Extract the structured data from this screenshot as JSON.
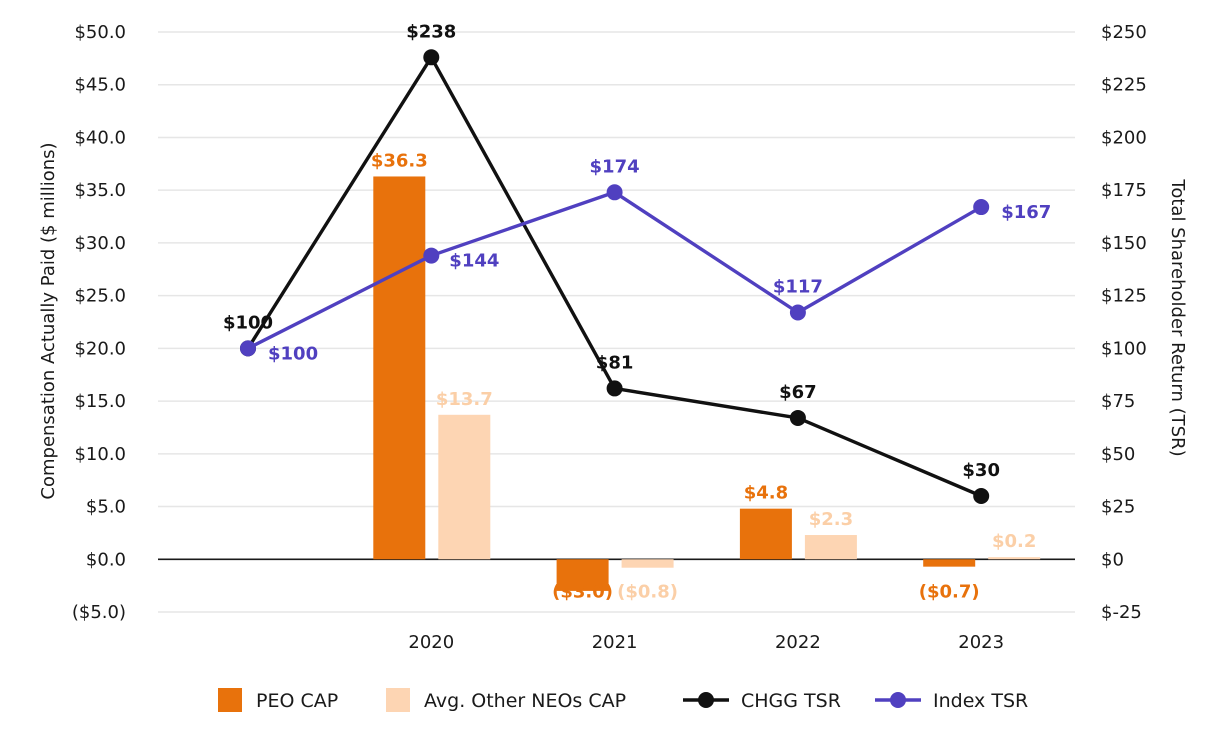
{
  "chart_data": {
    "type": "bar",
    "categories": [
      "",
      "2020",
      "2021",
      "2022",
      "2023"
    ],
    "y_left": {
      "label": "Compensation Actually Paid ($ millions)",
      "range": [
        -5,
        50
      ],
      "ticks": [
        50,
        45,
        40,
        35,
        30,
        25,
        20,
        15,
        10,
        5,
        0,
        -5
      ],
      "tick_labels": [
        "$50.0",
        "$45.0",
        "$40.0",
        "$35.0",
        "$30.0",
        "$25.0",
        "$20.0",
        "$15.0",
        "$10.0",
        "$5.0",
        "$0.0",
        "($5.0)"
      ]
    },
    "y_right": {
      "label": "Total Shareholder Return (TSR)",
      "range": [
        -25,
        250
      ],
      "ticks": [
        250,
        225,
        200,
        175,
        150,
        125,
        100,
        75,
        50,
        25,
        0,
        -25
      ],
      "tick_labels": [
        "$250",
        "$225",
        "$200",
        "$175",
        "$150",
        "$125",
        "$100",
        "$75",
        "$50",
        "$25",
        "$0",
        "$-25"
      ]
    },
    "series": [
      {
        "name": "PEO CAP",
        "kind": "bar",
        "axis": "left",
        "color": "#E8720C",
        "label_color": "#E8720C",
        "values": [
          null,
          36.3,
          -3.0,
          4.8,
          -0.7
        ],
        "labels": [
          "",
          "$36.3",
          "($3.0)",
          "$4.8",
          "($0.7)"
        ]
      },
      {
        "name": "Avg. Other NEOs CAP",
        "kind": "bar",
        "axis": "left",
        "color": "#FDD5B3",
        "label_color": "#FBCFA7",
        "values": [
          null,
          13.7,
          -0.8,
          2.3,
          0.2
        ],
        "labels": [
          "",
          "$13.7",
          "($0.8)",
          "$2.3",
          "$0.2"
        ]
      },
      {
        "name": "CHGG TSR",
        "kind": "line",
        "axis": "right",
        "color": "#111111",
        "label_color": "#111111",
        "values": [
          100,
          238,
          81,
          67,
          30
        ],
        "labels": [
          "$100",
          "$238",
          "$81",
          "$67",
          "$30"
        ]
      },
      {
        "name": "Index TSR",
        "kind": "line",
        "axis": "right",
        "color": "#5040C0",
        "label_color": "#5040C0",
        "values": [
          100,
          144,
          174,
          117,
          167
        ],
        "labels": [
          "$100",
          "$144",
          "$174",
          "$117",
          "$167"
        ]
      }
    ],
    "grid": true,
    "legend_position": "bottom"
  }
}
